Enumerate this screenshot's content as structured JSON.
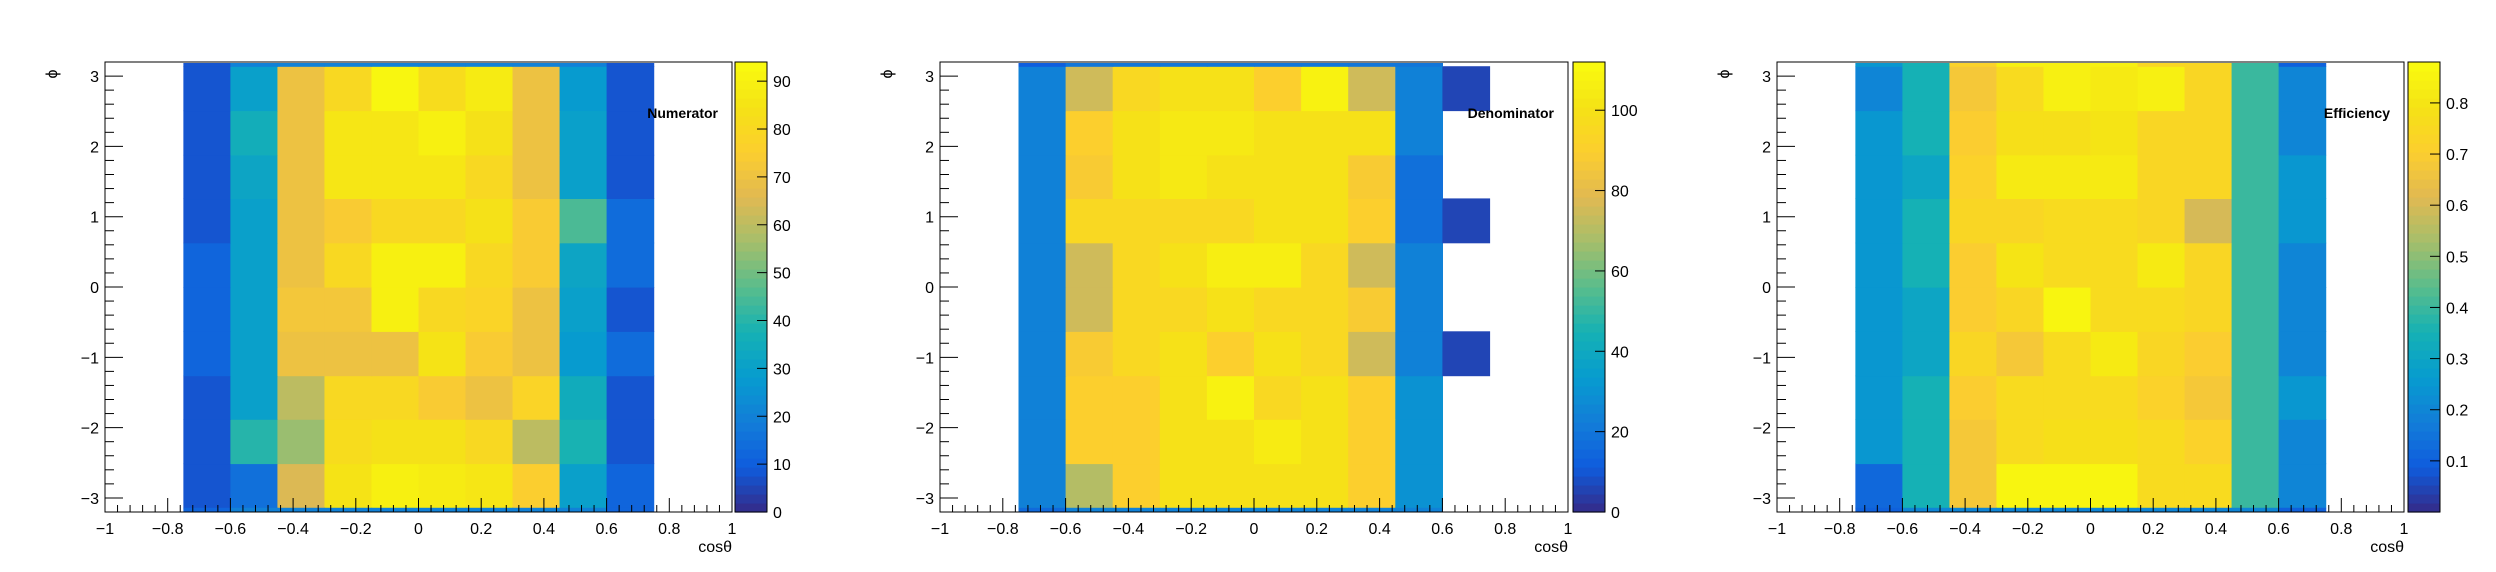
{
  "chart_data": [
    {
      "type": "heatmap",
      "title": "Numerator",
      "xlabel": "cosθ",
      "ylabel": "ϕ",
      "xlim": [
        -1,
        1
      ],
      "ylim": [
        -3.2,
        3.2
      ],
      "x_ticks": [
        "−1",
        "−0.8",
        "−0.6",
        "−0.4",
        "−0.2",
        "0",
        "0.2",
        "0.4",
        "0.6",
        "0.8",
        "1"
      ],
      "y_ticks": [
        "−3",
        "−2",
        "−1",
        "0",
        "1",
        "2",
        "3"
      ],
      "x_edges": [
        -0.75,
        -0.6,
        -0.45,
        -0.3,
        -0.15,
        0,
        0.15,
        0.3,
        0.45,
        0.6,
        0.75,
        0.9
      ],
      "y_edges": [
        -3.14,
        -2.51,
        -1.88,
        -1.26,
        -0.63,
        0,
        0.63,
        1.26,
        1.88,
        2.51,
        3.14
      ],
      "z_range": [
        0,
        94
      ],
      "z_ticks": [
        0,
        10,
        20,
        30,
        40,
        50,
        60,
        70,
        80,
        90
      ],
      "values": [
        [
          8,
          15,
          65,
          85,
          90,
          88,
          86,
          75,
          30,
          12,
          null
        ],
        [
          8,
          40,
          55,
          82,
          84,
          84,
          80,
          60,
          38,
          8,
          null
        ],
        [
          8,
          30,
          60,
          80,
          80,
          74,
          70,
          78,
          35,
          8,
          null
        ],
        [
          12,
          30,
          70,
          70,
          70,
          85,
          74,
          70,
          28,
          14,
          null
        ],
        [
          12,
          30,
          72,
          72,
          90,
          80,
          78,
          70,
          30,
          8,
          null
        ],
        [
          12,
          30,
          70,
          80,
          90,
          90,
          80,
          74,
          32,
          14,
          null
        ],
        [
          8,
          30,
          70,
          74,
          80,
          80,
          84,
          74,
          45,
          14,
          null
        ],
        [
          8,
          32,
          70,
          86,
          86,
          86,
          80,
          70,
          30,
          8,
          null
        ],
        [
          8,
          36,
          70,
          86,
          86,
          90,
          84,
          70,
          30,
          8,
          null
        ],
        [
          8,
          30,
          70,
          80,
          92,
          82,
          88,
          70,
          28,
          8,
          null
        ]
      ],
      "top_strip": [
        8,
        20,
        20,
        20,
        20,
        20,
        20,
        20,
        20,
        8,
        null
      ],
      "bottom_strip": [
        12,
        20,
        20,
        20,
        20,
        20,
        20,
        20,
        20,
        12,
        null
      ]
    },
    {
      "type": "heatmap",
      "title": "Denominator",
      "xlabel": "cosθ",
      "ylabel": "ϕ",
      "xlim": [
        -1,
        1
      ],
      "ylim": [
        -3.2,
        3.2
      ],
      "x_ticks": [
        "−1",
        "−0.8",
        "−0.6",
        "−0.4",
        "−0.2",
        "0",
        "0.2",
        "0.4",
        "0.6",
        "0.8",
        "1"
      ],
      "y_ticks": [
        "−3",
        "−2",
        "−1",
        "0",
        "1",
        "2",
        "3"
      ],
      "x_edges": [
        -0.75,
        -0.6,
        -0.45,
        -0.3,
        -0.15,
        0,
        0.15,
        0.3,
        0.45,
        0.6,
        0.75,
        0.9
      ],
      "y_edges": [
        -3.14,
        -2.51,
        -1.88,
        -1.26,
        -0.63,
        0,
        0.63,
        1.26,
        1.88,
        2.51,
        3.14
      ],
      "z_range": [
        0,
        112
      ],
      "z_ticks": [
        0,
        20,
        40,
        60,
        80,
        100
      ],
      "values": [
        [
          24,
          70,
          90,
          100,
          100,
          100,
          100,
          90,
          30,
          null,
          null
        ],
        [
          24,
          90,
          90,
          100,
          100,
          105,
          100,
          90,
          30,
          null,
          null
        ],
        [
          24,
          90,
          90,
          100,
          108,
          95,
          100,
          90,
          30,
          null,
          null
        ],
        [
          24,
          88,
          95,
          100,
          90,
          100,
          95,
          75,
          24,
          6,
          null
        ],
        [
          24,
          75,
          95,
          95,
          100,
          95,
          95,
          88,
          24,
          null,
          null
        ],
        [
          24,
          75,
          95,
          100,
          106,
          106,
          95,
          75,
          24,
          null,
          null
        ],
        [
          24,
          95,
          95,
          95,
          95,
          100,
          100,
          90,
          18,
          6,
          null
        ],
        [
          24,
          88,
          100,
          104,
          100,
          100,
          100,
          88,
          18,
          null,
          null
        ],
        [
          24,
          90,
          100,
          104,
          104,
          100,
          100,
          100,
          24,
          null,
          null
        ],
        [
          24,
          75,
          95,
          100,
          100,
          90,
          108,
          75,
          24,
          6,
          null
        ]
      ],
      "top_strip": [
        12,
        20,
        20,
        20,
        20,
        20,
        20,
        20,
        20,
        null,
        null
      ],
      "bottom_strip": [
        16,
        24,
        24,
        24,
        24,
        24,
        24,
        24,
        24,
        null,
        null
      ]
    },
    {
      "type": "heatmap",
      "title": "Efficiency",
      "xlabel": "cosθ",
      "ylabel": "ϕ",
      "xlim": [
        -1,
        1
      ],
      "ylim": [
        -3.2,
        3.2
      ],
      "x_ticks": [
        "−1",
        "−0.8",
        "−0.6",
        "−0.4",
        "−0.2",
        "0",
        "0.2",
        "0.4",
        "0.6",
        "0.8",
        "1"
      ],
      "y_ticks": [
        "−3",
        "−2",
        "−1",
        "0",
        "1",
        "2",
        "3"
      ],
      "x_edges": [
        -0.75,
        -0.6,
        -0.45,
        -0.3,
        -0.15,
        0,
        0.15,
        0.3,
        0.45,
        0.6,
        0.75,
        0.9
      ],
      "y_edges": [
        -3.14,
        -2.51,
        -1.88,
        -1.26,
        -0.63,
        0,
        0.63,
        1.26,
        1.88,
        2.51,
        3.14
      ],
      "z_range": [
        0,
        0.88
      ],
      "z_ticks": [
        0.1,
        0.2,
        0.3,
        0.4,
        0.5,
        0.6,
        0.7,
        0.8
      ],
      "values": [
        [
          0.12,
          0.35,
          0.68,
          0.86,
          0.86,
          0.86,
          0.76,
          0.76,
          0.4,
          0.2,
          null
        ],
        [
          0.25,
          0.35,
          0.68,
          0.76,
          0.78,
          0.78,
          0.76,
          0.72,
          0.4,
          0.2,
          null
        ],
        [
          0.25,
          0.35,
          0.7,
          0.76,
          0.76,
          0.76,
          0.72,
          0.68,
          0.4,
          0.25,
          null
        ],
        [
          0.25,
          0.3,
          0.74,
          0.68,
          0.76,
          0.82,
          0.74,
          0.7,
          0.4,
          0.2,
          null
        ],
        [
          0.25,
          0.3,
          0.7,
          0.74,
          0.86,
          0.76,
          0.76,
          0.74,
          0.4,
          0.2,
          null
        ],
        [
          0.25,
          0.35,
          0.7,
          0.8,
          0.76,
          0.76,
          0.82,
          0.74,
          0.4,
          0.2,
          null
        ],
        [
          0.25,
          0.35,
          0.74,
          0.74,
          0.76,
          0.76,
          0.74,
          0.6,
          0.4,
          0.25,
          null
        ],
        [
          0.25,
          0.3,
          0.72,
          0.82,
          0.82,
          0.82,
          0.74,
          0.74,
          0.4,
          0.25,
          null
        ],
        [
          0.25,
          0.35,
          0.7,
          0.78,
          0.78,
          0.8,
          0.74,
          0.74,
          0.4,
          0.2,
          null
        ],
        [
          0.2,
          0.35,
          0.68,
          0.76,
          0.84,
          0.82,
          0.84,
          0.74,
          0.4,
          0.2,
          null
        ]
      ],
      "top_strip": [
        0.25,
        0.35,
        0.72,
        0.84,
        0.84,
        0.84,
        0.74,
        0.74,
        0.4,
        0.1,
        null
      ],
      "bottom_strip": [
        0.1,
        0.2,
        0.2,
        0.2,
        0.2,
        0.2,
        0.2,
        0.2,
        0.2,
        0.1,
        null
      ]
    }
  ]
}
